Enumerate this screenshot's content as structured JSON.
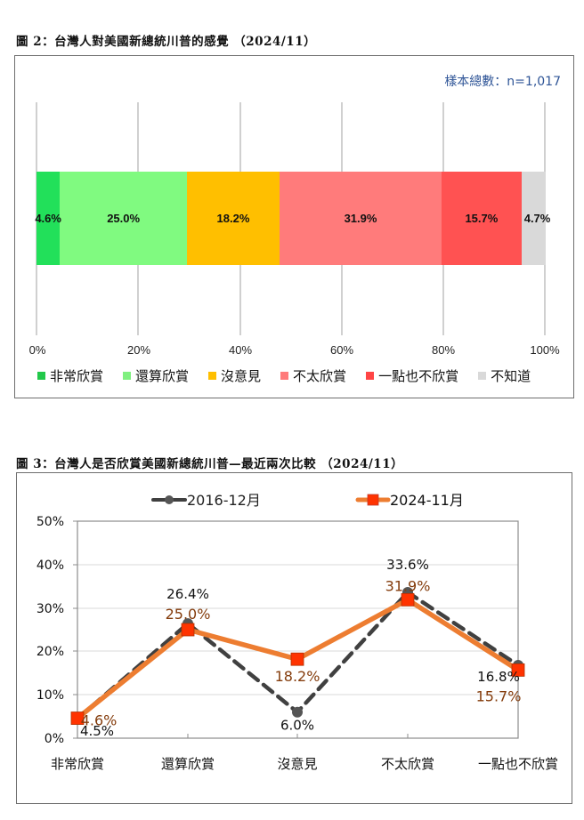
{
  "figure2": {
    "title": "圖 2：台灣人對美國新總統川普的感覺 （2024/11）",
    "sample_note": "樣本總數：n=1,017",
    "segments": [
      {
        "label": "非常欣賞",
        "value": 4.6,
        "text": "4.6%",
        "color": "#22e05a"
      },
      {
        "label": "還算欣賞",
        "value": 25.0,
        "text": "25.0%",
        "color": "#80fa80"
      },
      {
        "label": "沒意見",
        "value": 18.2,
        "text": "18.2%",
        "color": "#ffbf00"
      },
      {
        "label": "不太欣賞",
        "value": 31.9,
        "text": "31.9%",
        "color": "#ff7b7b"
      },
      {
        "label": "一點也不欣賞",
        "value": 15.7,
        "text": "15.7%",
        "color": "#ff5252"
      },
      {
        "label": "不知道",
        "value": 4.7,
        "text": "4.7%",
        "color": "#d9d9d9"
      }
    ],
    "x_ticks": [
      "0%",
      "20%",
      "40%",
      "60%",
      "80%",
      "100%"
    ],
    "legend": [
      "非常欣賞",
      "還算欣賞",
      "沒意見",
      "不太欣賞",
      "一點也不欣賞",
      "不知道"
    ]
  },
  "figure3": {
    "title": "圖 3：台灣人是否欣賞美國新總統川普—最近兩次比較 （2024/11）",
    "legend": [
      "2016-12月",
      "2024-11月"
    ],
    "y_ticks": [
      "0%",
      "10%",
      "20%",
      "30%",
      "40%",
      "50%"
    ],
    "categories": [
      "非常欣賞",
      "還算欣賞",
      "沒意見",
      "不太欣賞",
      "一點也不欣賞"
    ],
    "series": [
      {
        "name": "2016-12月",
        "values": [
          4.5,
          26.4,
          6.0,
          33.6,
          16.8
        ],
        "labels": [
          "4.5%",
          "26.4%",
          "6.0%",
          "33.6%",
          "16.8%"
        ],
        "color": "#404040"
      },
      {
        "name": "2024-11月",
        "values": [
          4.6,
          25.0,
          18.2,
          31.9,
          15.7
        ],
        "labels": [
          "4.6%",
          "25.0%",
          "18.2%",
          "31.9%",
          "15.7%"
        ],
        "color": "#ed7d31",
        "marker_color": "#ff3300",
        "label_color": "#843c0c"
      }
    ]
  },
  "chart_data": [
    {
      "type": "bar",
      "orientation": "horizontal-stacked-100",
      "title": "圖 2：台灣人對美國新總統川普的感覺 （2024/11）",
      "annotation": "樣本總數：n=1,017",
      "categories": [
        "非常欣賞",
        "還算欣賞",
        "沒意見",
        "不太欣賞",
        "一點也不欣賞",
        "不知道"
      ],
      "values": [
        4.6,
        25.0,
        18.2,
        31.9,
        15.7,
        4.7
      ],
      "xlabel": "",
      "ylabel": "",
      "xlim": [
        0,
        100
      ],
      "x_ticks": [
        "0%",
        "20%",
        "40%",
        "60%",
        "80%",
        "100%"
      ],
      "grid": "vertical",
      "legend_position": "bottom"
    },
    {
      "type": "line",
      "title": "圖 3：台灣人是否欣賞美國新總統川普—最近兩次比較 （2024/11）",
      "categories": [
        "非常欣賞",
        "還算欣賞",
        "沒意見",
        "不太欣賞",
        "一點也不欣賞"
      ],
      "series": [
        {
          "name": "2016-12月",
          "values": [
            4.5,
            26.4,
            6.0,
            33.6,
            16.8
          ],
          "style": "dashed",
          "marker": "circle"
        },
        {
          "name": "2024-11月",
          "values": [
            4.6,
            25.0,
            18.2,
            31.9,
            15.7
          ],
          "style": "solid",
          "marker": "square"
        }
      ],
      "xlabel": "",
      "ylabel": "",
      "ylim": [
        0,
        50
      ],
      "y_ticks": [
        "0%",
        "10%",
        "20%",
        "30%",
        "40%",
        "50%"
      ],
      "grid": "horizontal",
      "legend_position": "top"
    }
  ]
}
